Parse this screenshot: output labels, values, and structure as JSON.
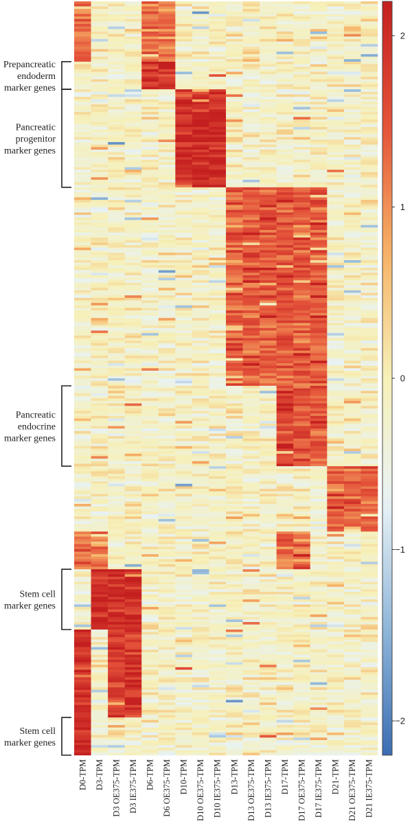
{
  "chart_data": {
    "type": "heatmap",
    "title": "",
    "columns": [
      "D0-TPM",
      "D3-TPM",
      "D3 OE375-TPM",
      "D3 IE375-TPM",
      "D6-TPM",
      "D6 OE375-TPM",
      "D10-TPM",
      "D10 OE375-TPM",
      "D10 IE375-TPM",
      "D13-TPM",
      "D13 OE375-TPM",
      "D13 IE375-TPM",
      "D17-TPM",
      "D17 OE375-TPM",
      "D17 IE375-TPM",
      "D21-TPM",
      "D21 OE375-TPM",
      "D21 IE375-TPM"
    ],
    "row_count": 300,
    "colorscale": {
      "min": -2.2,
      "max": 2.2,
      "ticks": [
        {
          "value": 2,
          "label": "2"
        },
        {
          "value": 1,
          "label": "1"
        },
        {
          "value": 0,
          "label": "0"
        },
        {
          "value": -1,
          "label": "−1"
        },
        {
          "value": -2,
          "label": "−2"
        }
      ],
      "colors": [
        "#3b6db3",
        "#8fb6d9",
        "#e8f2f5",
        "#f6f0b8",
        "#f6b266",
        "#e4533a",
        "#c41f1f"
      ]
    },
    "gene_groups": [
      {
        "label": "Prepancreatic endoderm marker genes",
        "lines": [
          "Prepancreatic",
          "endoderm",
          "marker genes"
        ],
        "row_start": 24,
        "row_end": 34,
        "high_columns": [
          4,
          5
        ]
      },
      {
        "label": "Pancreatic progenitor marker genes",
        "lines": [
          "Pancreatic",
          "progenitor",
          "marker genes"
        ],
        "row_start": 35,
        "row_end": 73,
        "high_columns": [
          6,
          7,
          8
        ]
      },
      {
        "label": "Pancreatic endocrine marker genes",
        "lines": [
          "Pancreatic",
          "endocrine",
          "marker genes"
        ],
        "row_start": 153,
        "row_end": 184,
        "high_columns": [
          12,
          13,
          14
        ]
      },
      {
        "label": "Stem cell marker genes",
        "lines": [
          "Stem cell",
          "marker genes"
        ],
        "row_start": 226,
        "row_end": 249,
        "high_columns": [
          1,
          2,
          3
        ]
      },
      {
        "label": "Stem cell marker genes",
        "lines": [
          "Stem cell",
          "marker genes"
        ],
        "row_start": 285,
        "row_end": 299,
        "high_columns": [
          0
        ]
      }
    ],
    "row_blocks": [
      {
        "row_start": 0,
        "row_end": 23,
        "high_columns": [
          0,
          4,
          5
        ],
        "level": 1.2
      },
      {
        "row_start": 24,
        "row_end": 34,
        "high_columns": [
          4,
          5
        ],
        "level": 2.0
      },
      {
        "row_start": 35,
        "row_end": 73,
        "high_columns": [
          6,
          7,
          8
        ],
        "level": 2.0
      },
      {
        "row_start": 74,
        "row_end": 152,
        "high_columns": [
          9,
          10,
          11,
          12,
          13,
          14
        ],
        "level": 1.4
      },
      {
        "row_start": 153,
        "row_end": 184,
        "high_columns": [
          12,
          13,
          14
        ],
        "level": 1.5
      },
      {
        "row_start": 185,
        "row_end": 210,
        "high_columns": [
          15,
          16,
          17
        ],
        "level": 1.4
      },
      {
        "row_start": 211,
        "row_end": 225,
        "high_columns": [
          0,
          1,
          12,
          13
        ],
        "level": 1.2
      },
      {
        "row_start": 226,
        "row_end": 249,
        "high_columns": [
          1,
          2,
          3
        ],
        "level": 2.0
      },
      {
        "row_start": 250,
        "row_end": 284,
        "high_columns": [
          0,
          2,
          3
        ],
        "level": 1.8
      },
      {
        "row_start": 285,
        "row_end": 299,
        "high_columns": [
          0
        ],
        "level": 2.0
      }
    ]
  }
}
